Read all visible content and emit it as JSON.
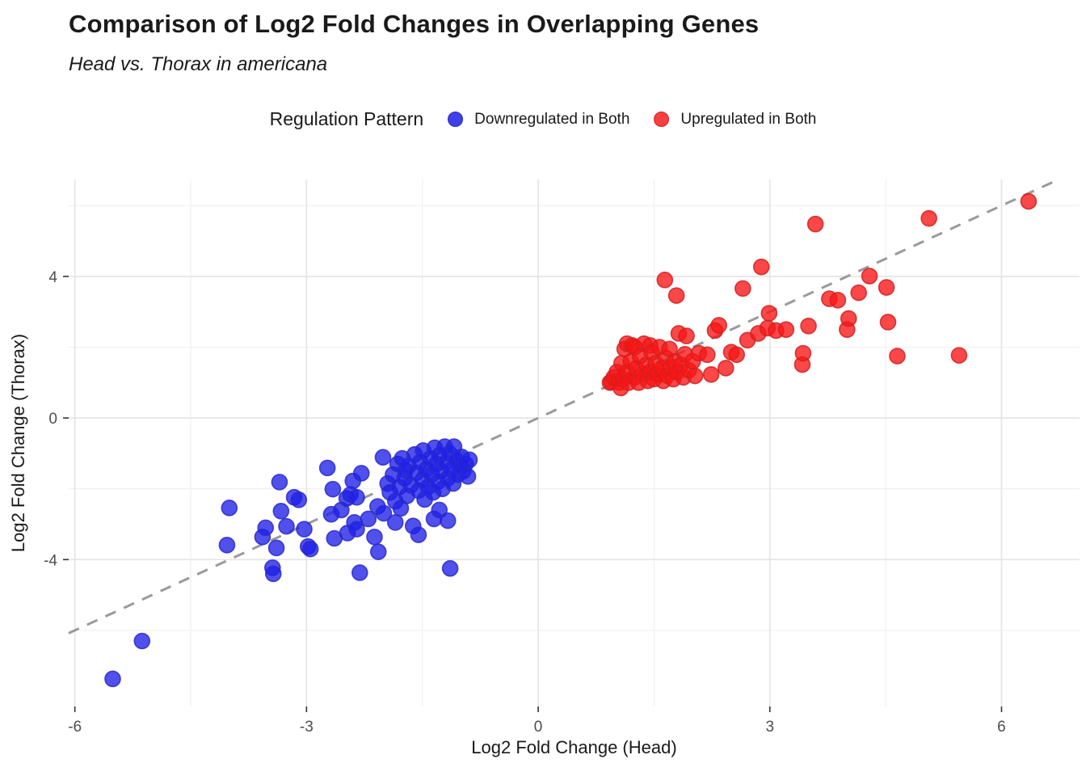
{
  "header": {
    "title": "Comparison of Log2 Fold Changes in Overlapping Genes",
    "subtitle": "Head vs. Thorax in americana"
  },
  "legend": {
    "title": "Regulation Pattern",
    "items": [
      {
        "label": "Downregulated in Both",
        "color": "#4040e8",
        "border": "#2a2ac0"
      },
      {
        "label": "Upregulated in Both",
        "color": "#f84040",
        "border": "#d02424"
      }
    ]
  },
  "chart_data": {
    "type": "scatter",
    "title": "Comparison of Log2 Fold Changes in Overlapping Genes",
    "subtitle": "Head vs. Thorax in americana",
    "xlabel": "Log2 Fold Change (Head)",
    "ylabel": "Log2 Fold Change (Thorax)",
    "xlim": [
      -6.08,
      7.01
    ],
    "ylim": [
      -8.15,
      6.74
    ],
    "x_ticks": [
      -6,
      -3,
      0,
      3,
      6
    ],
    "y_ticks": [
      -4,
      0,
      4
    ],
    "x_minor": [
      -4.5,
      -1.5,
      1.5,
      4.5
    ],
    "y_minor": [
      -6,
      -2,
      2,
      6
    ],
    "grid": {
      "major_color": "#e5e5e5",
      "minor_color": "#f1f1f1"
    },
    "tick_color": "#333333",
    "tick_label_color": "#4d4d4d",
    "identity_line": {
      "points": [
        [
          -6.08,
          -6.08
        ],
        [
          6.74,
          6.74
        ]
      ],
      "style": "dashed",
      "color": "#9a9a9a"
    },
    "point_radius": 9.5,
    "series": [
      {
        "name": "Downregulated in Both",
        "fill": "#1f1fe8",
        "stroke": "#2a2ac8",
        "points": [
          [
            -5.51,
            -7.37
          ],
          [
            -5.13,
            -6.3
          ],
          [
            -4.03,
            -3.59
          ],
          [
            -4.0,
            -2.54
          ],
          [
            -3.57,
            -3.36
          ],
          [
            -3.53,
            -3.1
          ],
          [
            -3.44,
            -4.23
          ],
          [
            -3.43,
            -4.4
          ],
          [
            -3.39,
            -3.67
          ],
          [
            -3.35,
            -1.81
          ],
          [
            -3.33,
            -2.63
          ],
          [
            -3.26,
            -3.06
          ],
          [
            -3.16,
            -2.24
          ],
          [
            -3.1,
            -2.31
          ],
          [
            -3.03,
            -3.14
          ],
          [
            -2.98,
            -3.63
          ],
          [
            -2.95,
            -3.7
          ],
          [
            -2.73,
            -1.41
          ],
          [
            -2.68,
            -2.72
          ],
          [
            -2.66,
            -2.01
          ],
          [
            -2.64,
            -3.4
          ],
          [
            -2.55,
            -2.6
          ],
          [
            -2.48,
            -2.27
          ],
          [
            -2.47,
            -3.25
          ],
          [
            -2.43,
            -2.16
          ],
          [
            -2.4,
            -1.78
          ],
          [
            -2.38,
            -2.95
          ],
          [
            -2.35,
            -2.24
          ],
          [
            -2.35,
            -3.14
          ],
          [
            -2.31,
            -4.37
          ],
          [
            -2.29,
            -1.56
          ],
          [
            -2.2,
            -2.85
          ],
          [
            -2.12,
            -3.36
          ],
          [
            -2.08,
            -2.5
          ],
          [
            -2.07,
            -3.78
          ],
          [
            -2.01,
            -1.11
          ],
          [
            -2.0,
            -2.69
          ],
          [
            -1.95,
            -1.85
          ],
          [
            -1.92,
            -2.1
          ],
          [
            -1.88,
            -1.6
          ],
          [
            -1.85,
            -2.95
          ],
          [
            -1.85,
            -2.35
          ],
          [
            -1.82,
            -1.3
          ],
          [
            -1.8,
            -1.95
          ],
          [
            -1.78,
            -2.55
          ],
          [
            -1.76,
            -1.14
          ],
          [
            -1.73,
            -1.7
          ],
          [
            -1.72,
            -1.48
          ],
          [
            -1.7,
            -2.2
          ],
          [
            -1.68,
            -1.35
          ],
          [
            -1.65,
            -1.9
          ],
          [
            -1.62,
            -3.05
          ],
          [
            -1.6,
            -1.03
          ],
          [
            -1.58,
            -1.55
          ],
          [
            -1.55,
            -3.3
          ],
          [
            -1.55,
            -2.05
          ],
          [
            -1.53,
            -1.25
          ],
          [
            -1.5,
            -1.75
          ],
          [
            -1.49,
            -0.92
          ],
          [
            -1.47,
            -2.3
          ],
          [
            -1.45,
            -1.45
          ],
          [
            -1.43,
            -1.95
          ],
          [
            -1.4,
            -1.15
          ],
          [
            -1.38,
            -1.6
          ],
          [
            -1.36,
            -2.1
          ],
          [
            -1.35,
            -2.85
          ],
          [
            -1.34,
            -0.84
          ],
          [
            -1.32,
            -1.3
          ],
          [
            -1.3,
            -1.8
          ],
          [
            -1.28,
            -2.6
          ],
          [
            -1.28,
            -1.05
          ],
          [
            -1.26,
            -1.5
          ],
          [
            -1.24,
            -2.0
          ],
          [
            -1.21,
            -0.81
          ],
          [
            -1.19,
            -1.25
          ],
          [
            -1.17,
            -2.9
          ],
          [
            -1.17,
            -1.7
          ],
          [
            -1.15,
            -1.0
          ],
          [
            -1.14,
            -4.25
          ],
          [
            -1.13,
            -1.45
          ],
          [
            -1.1,
            -1.85
          ],
          [
            -1.09,
            -0.81
          ],
          [
            -1.06,
            -1.2
          ],
          [
            -1.04,
            -1.6
          ],
          [
            -1.02,
            -1.33
          ],
          [
            -0.99,
            -1.1
          ],
          [
            -0.97,
            -1.5
          ],
          [
            -0.94,
            -1.3
          ],
          [
            -0.91,
            -1.65
          ],
          [
            -0.89,
            -1.18
          ]
        ]
      },
      {
        "name": "Upregulated in Both",
        "fill": "#f81515",
        "stroke": "#d02020",
        "points": [
          [
            0.93,
            1.0
          ],
          [
            0.95,
            1.03
          ],
          [
            0.98,
            1.15
          ],
          [
            1.02,
            1.3
          ],
          [
            1.05,
            1.0
          ],
          [
            1.07,
            0.85
          ],
          [
            1.08,
            1.55
          ],
          [
            1.1,
            1.1
          ],
          [
            1.12,
            1.95
          ],
          [
            1.15,
            2.1
          ],
          [
            1.15,
            1.3
          ],
          [
            1.17,
            1.0
          ],
          [
            1.2,
            1.6
          ],
          [
            1.22,
            2.05
          ],
          [
            1.25,
            2.0
          ],
          [
            1.25,
            1.15
          ],
          [
            1.27,
            1.4
          ],
          [
            1.3,
            1.0
          ],
          [
            1.32,
            1.75
          ],
          [
            1.35,
            1.25
          ],
          [
            1.37,
            2.1
          ],
          [
            1.4,
            1.5
          ],
          [
            1.42,
            1.05
          ],
          [
            1.45,
            2.05
          ],
          [
            1.45,
            1.3
          ],
          [
            1.47,
            1.85
          ],
          [
            1.5,
            1.1
          ],
          [
            1.52,
            1.55
          ],
          [
            1.55,
            1.25
          ],
          [
            1.57,
            2.0
          ],
          [
            1.6,
            1.4
          ],
          [
            1.62,
            1.05
          ],
          [
            1.64,
            3.9
          ],
          [
            1.65,
            1.7
          ],
          [
            1.67,
            1.2
          ],
          [
            1.7,
            1.95
          ],
          [
            1.72,
            1.45
          ],
          [
            1.75,
            1.1
          ],
          [
            1.77,
            1.6
          ],
          [
            1.79,
            3.46
          ],
          [
            1.8,
            1.3
          ],
          [
            1.82,
            2.39
          ],
          [
            1.85,
            1.5
          ],
          [
            1.88,
            1.15
          ],
          [
            1.9,
            1.8
          ],
          [
            1.92,
            2.32
          ],
          [
            1.95,
            1.35
          ],
          [
            2.0,
            1.6
          ],
          [
            2.03,
            1.19
          ],
          [
            2.08,
            1.83
          ],
          [
            2.19,
            1.79
          ],
          [
            2.24,
            1.23
          ],
          [
            2.29,
            2.47
          ],
          [
            2.34,
            2.62
          ],
          [
            2.43,
            1.41
          ],
          [
            2.5,
            1.86
          ],
          [
            2.57,
            1.79
          ],
          [
            2.65,
            3.66
          ],
          [
            2.71,
            2.2
          ],
          [
            2.85,
            2.39
          ],
          [
            2.89,
            4.27
          ],
          [
            2.97,
            2.54
          ],
          [
            2.99,
            2.96
          ],
          [
            3.08,
            2.47
          ],
          [
            3.21,
            2.5
          ],
          [
            3.42,
            1.51
          ],
          [
            3.43,
            1.83
          ],
          [
            3.5,
            2.6
          ],
          [
            3.59,
            5.48
          ],
          [
            3.77,
            3.37
          ],
          [
            3.88,
            3.33
          ],
          [
            4.0,
            2.5
          ],
          [
            4.02,
            2.81
          ],
          [
            4.15,
            3.54
          ],
          [
            4.29,
            4.01
          ],
          [
            4.51,
            3.69
          ],
          [
            4.53,
            2.71
          ],
          [
            4.65,
            1.75
          ],
          [
            5.06,
            5.64
          ],
          [
            5.45,
            1.77
          ],
          [
            6.35,
            6.12
          ]
        ]
      }
    ]
  }
}
